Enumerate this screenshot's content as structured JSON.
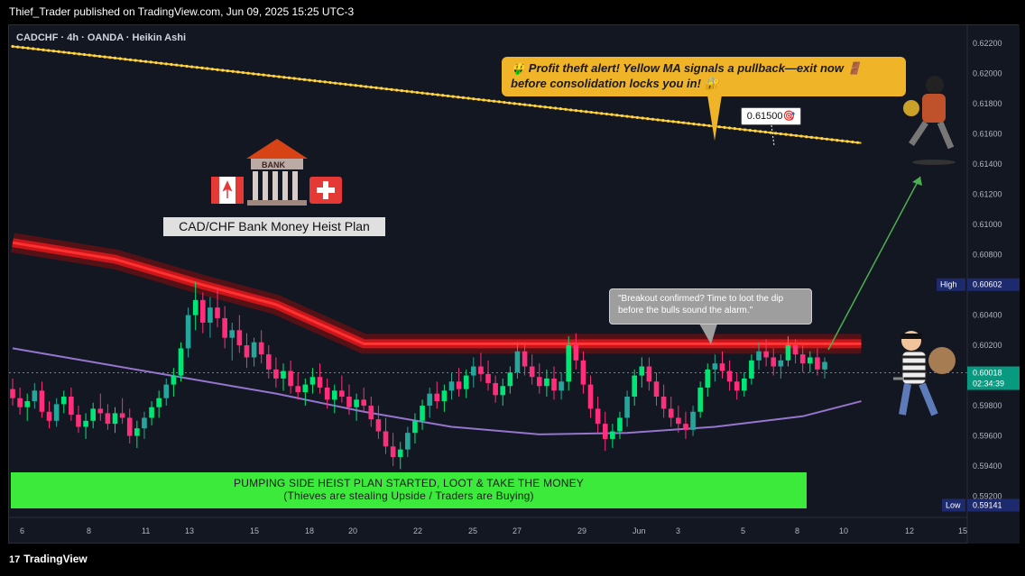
{
  "header": {
    "publisher_line": "Thief_Trader published on TradingView.com, Jun 09, 2025 15:25 UTC-3"
  },
  "footer": {
    "brand": "TradingView",
    "brand_mark": "17"
  },
  "symbol_line": "CADCHF · 4h · OANDA · Heikin Ashi",
  "annotations": {
    "yellow_callout_line1": "🤑 Profit theft alert! Yellow MA signals a pullback—exit now 🚪",
    "yellow_callout_line2": "before consolidation locks you in! 🔐",
    "target_label": "0.61500🎯",
    "bank_title": "CAD/CHF Bank Money Heist Plan",
    "bank_sign": "BANK",
    "quote_line1": "\"Breakout confirmed? Time to loot the dip",
    "quote_line2": "before the bulls sound the alarm.\"",
    "banner_line1": "PUMPING SIDE HEIST PLAN STARTED, LOOT & TAKE THE MONEY",
    "banner_line2": "(Thieves are stealing Upside / Traders are Buying)"
  },
  "chart_data": {
    "type": "candlestick",
    "style": "heikin-ashi",
    "symbol": "CADCHF",
    "timeframe": "4h",
    "broker": "OANDA",
    "y_axis": {
      "ylim": [
        0.5906,
        0.6232
      ],
      "ticks": [
        "0.62200",
        "0.62000",
        "0.61800",
        "0.61600",
        "0.61400",
        "0.61200",
        "0.61000",
        "0.60800",
        "0.60600",
        "0.60400",
        "0.60200",
        "0.59800",
        "0.59600",
        "0.59400",
        "0.59200"
      ]
    },
    "x_axis": {
      "ticks": [
        "6",
        "8",
        "11",
        "13",
        "15",
        "18",
        "20",
        "22",
        "25",
        "27",
        "29",
        "Jun",
        "3",
        "5",
        "8",
        "10",
        "12",
        "15"
      ]
    },
    "price_labels": [
      {
        "name": "High",
        "value": "0.60602",
        "color": "#1e2a6e"
      },
      {
        "name": "",
        "value": "0.60018",
        "sub": "02:34:39",
        "color": "#089981"
      },
      {
        "name": "Low",
        "value": "0.59141",
        "color": "#1e2a6e"
      }
    ],
    "last_price": 0.60018,
    "target_price": 0.615,
    "colors": {
      "up": "#26a69a",
      "up_bright": "#00e676",
      "down": "#ff2e7a",
      "ma_slow": "#9575cd",
      "ma_yellow": "#f5c518",
      "resistance": "#e01b1b"
    },
    "candles_ohlc": [
      [
        0.5991,
        0.5998,
        0.598,
        0.5985
      ],
      [
        0.5985,
        0.5992,
        0.5974,
        0.5979
      ],
      [
        0.5979,
        0.5988,
        0.597,
        0.5983
      ],
      [
        0.5983,
        0.5995,
        0.5978,
        0.599
      ],
      [
        0.599,
        0.5996,
        0.5972,
        0.5976
      ],
      [
        0.5976,
        0.5983,
        0.5965,
        0.597
      ],
      [
        0.597,
        0.5985,
        0.5966,
        0.5981
      ],
      [
        0.5981,
        0.599,
        0.5975,
        0.5986
      ],
      [
        0.5986,
        0.5992,
        0.597,
        0.5974
      ],
      [
        0.5974,
        0.598,
        0.5962,
        0.5966
      ],
      [
        0.5966,
        0.5975,
        0.5958,
        0.597
      ],
      [
        0.597,
        0.5982,
        0.5965,
        0.5978
      ],
      [
        0.5978,
        0.5988,
        0.597,
        0.5975
      ],
      [
        0.5975,
        0.5981,
        0.5964,
        0.5968
      ],
      [
        0.5968,
        0.5979,
        0.5962,
        0.5975
      ],
      [
        0.5975,
        0.5985,
        0.5968,
        0.5972
      ],
      [
        0.5972,
        0.5978,
        0.5955,
        0.596
      ],
      [
        0.596,
        0.597,
        0.5952,
        0.5965
      ],
      [
        0.5965,
        0.5976,
        0.5958,
        0.5972
      ],
      [
        0.5972,
        0.5983,
        0.5967,
        0.5979
      ],
      [
        0.5979,
        0.599,
        0.5972,
        0.5985
      ],
      [
        0.5985,
        0.5998,
        0.598,
        0.5994
      ],
      [
        0.5994,
        0.6005,
        0.5986,
        0.6
      ],
      [
        0.6,
        0.6022,
        0.5996,
        0.6018
      ],
      [
        0.6018,
        0.6045,
        0.6012,
        0.604
      ],
      [
        0.604,
        0.6062,
        0.603,
        0.605
      ],
      [
        0.605,
        0.6055,
        0.6028,
        0.6035
      ],
      [
        0.6035,
        0.6052,
        0.6025,
        0.6045
      ],
      [
        0.6045,
        0.6058,
        0.6032,
        0.6038
      ],
      [
        0.6038,
        0.6046,
        0.6018,
        0.6025
      ],
      [
        0.6025,
        0.6035,
        0.601,
        0.603
      ],
      [
        0.603,
        0.604,
        0.6015,
        0.602
      ],
      [
        0.602,
        0.6028,
        0.6005,
        0.6012
      ],
      [
        0.6012,
        0.6025,
        0.6006,
        0.6022
      ],
      [
        0.6022,
        0.603,
        0.6008,
        0.6014
      ],
      [
        0.6014,
        0.602,
        0.5998,
        0.6004
      ],
      [
        0.6004,
        0.6012,
        0.5992,
        0.5998
      ],
      [
        0.5998,
        0.6008,
        0.599,
        0.6003
      ],
      [
        0.6003,
        0.601,
        0.5988,
        0.5993
      ],
      [
        0.5993,
        0.6002,
        0.5984,
        0.5989
      ],
      [
        0.5989,
        0.5998,
        0.598,
        0.5994
      ],
      [
        0.5994,
        0.6005,
        0.5988,
        0.5999
      ],
      [
        0.5999,
        0.6008,
        0.5988,
        0.5992
      ],
      [
        0.5992,
        0.5998,
        0.5978,
        0.5984
      ],
      [
        0.5984,
        0.5994,
        0.5975,
        0.599
      ],
      [
        0.599,
        0.6,
        0.5982,
        0.5986
      ],
      [
        0.5986,
        0.5994,
        0.5974,
        0.5979
      ],
      [
        0.5979,
        0.5988,
        0.597,
        0.5984
      ],
      [
        0.5984,
        0.5992,
        0.5976,
        0.598
      ],
      [
        0.598,
        0.5986,
        0.5966,
        0.5971
      ],
      [
        0.5971,
        0.598,
        0.5958,
        0.5963
      ],
      [
        0.5963,
        0.5972,
        0.5948,
        0.5953
      ],
      [
        0.5953,
        0.5962,
        0.594,
        0.5946
      ],
      [
        0.5946,
        0.5956,
        0.5938,
        0.5951
      ],
      [
        0.5951,
        0.5966,
        0.5946,
        0.5962
      ],
      [
        0.5962,
        0.5975,
        0.5955,
        0.597
      ],
      [
        0.597,
        0.5984,
        0.5964,
        0.598
      ],
      [
        0.598,
        0.5992,
        0.5972,
        0.5988
      ],
      [
        0.5988,
        0.5996,
        0.5978,
        0.5983
      ],
      [
        0.5983,
        0.5994,
        0.5976,
        0.599
      ],
      [
        0.599,
        0.6002,
        0.5984,
        0.5996
      ],
      [
        0.5996,
        0.6005,
        0.5986,
        0.5991
      ],
      [
        0.5991,
        0.6004,
        0.5985,
        0.6
      ],
      [
        0.6,
        0.6012,
        0.5992,
        0.6006
      ],
      [
        0.6006,
        0.6015,
        0.5996,
        0.6001
      ],
      [
        0.6001,
        0.601,
        0.599,
        0.5995
      ],
      [
        0.5995,
        0.6,
        0.5982,
        0.5987
      ],
      [
        0.5987,
        0.5998,
        0.598,
        0.5993
      ],
      [
        0.5993,
        0.6006,
        0.5988,
        0.6002
      ],
      [
        0.6002,
        0.6022,
        0.5998,
        0.6016
      ],
      [
        0.6016,
        0.6022,
        0.6,
        0.6006
      ],
      [
        0.6006,
        0.6014,
        0.5994,
        0.5999
      ],
      [
        0.5999,
        0.6008,
        0.5988,
        0.5993
      ],
      [
        0.5993,
        0.6004,
        0.5986,
        0.5998
      ],
      [
        0.5998,
        0.6006,
        0.5984,
        0.599
      ],
      [
        0.599,
        0.6002,
        0.5984,
        0.5996
      ],
      [
        0.5996,
        0.6026,
        0.599,
        0.602
      ],
      [
        0.602,
        0.6028,
        0.6004,
        0.601
      ],
      [
        0.601,
        0.6016,
        0.5988,
        0.5994
      ],
      [
        0.5994,
        0.6,
        0.5972,
        0.5978
      ],
      [
        0.5978,
        0.5986,
        0.5962,
        0.5968
      ],
      [
        0.5968,
        0.5976,
        0.595,
        0.5958
      ],
      [
        0.5958,
        0.5968,
        0.5952,
        0.5963
      ],
      [
        0.5963,
        0.5976,
        0.5958,
        0.5972
      ],
      [
        0.5972,
        0.599,
        0.5966,
        0.5986
      ],
      [
        0.5986,
        0.6004,
        0.598,
        0.6
      ],
      [
        0.6,
        0.6012,
        0.5992,
        0.6006
      ],
      [
        0.6006,
        0.6012,
        0.599,
        0.5996
      ],
      [
        0.5996,
        0.6002,
        0.598,
        0.5986
      ],
      [
        0.5986,
        0.5994,
        0.5972,
        0.5978
      ],
      [
        0.5978,
        0.5986,
        0.5966,
        0.5972
      ],
      [
        0.5972,
        0.598,
        0.5962,
        0.5968
      ],
      [
        0.5968,
        0.5976,
        0.5958,
        0.5964
      ],
      [
        0.5964,
        0.598,
        0.596,
        0.5976
      ],
      [
        0.5976,
        0.5996,
        0.5972,
        0.5992
      ],
      [
        0.5992,
        0.6008,
        0.5986,
        0.6004
      ],
      [
        0.6004,
        0.6014,
        0.5996,
        0.6008
      ],
      [
        0.6008,
        0.6016,
        0.5998,
        0.6003
      ],
      [
        0.6003,
        0.601,
        0.599,
        0.5996
      ],
      [
        0.5996,
        0.6002,
        0.5984,
        0.599
      ],
      [
        0.599,
        0.6002,
        0.5986,
        0.5998
      ],
      [
        0.5998,
        0.6014,
        0.5994,
        0.601
      ],
      [
        0.601,
        0.6022,
        0.6004,
        0.6016
      ],
      [
        0.6016,
        0.6024,
        0.6006,
        0.6012
      ],
      [
        0.6012,
        0.6018,
        0.6,
        0.6006
      ],
      [
        0.6006,
        0.6014,
        0.5998,
        0.601
      ],
      [
        0.601,
        0.6026,
        0.6006,
        0.602
      ],
      [
        0.602,
        0.6024,
        0.6008,
        0.6014
      ],
      [
        0.6014,
        0.602,
        0.6002,
        0.6008
      ],
      [
        0.6008,
        0.6016,
        0.6002,
        0.6012
      ],
      [
        0.6012,
        0.6018,
        0.6,
        0.6004
      ],
      [
        0.6004,
        0.6012,
        0.5998,
        0.6009
      ]
    ],
    "slow_ma": [
      [
        0,
        0.6018
      ],
      [
        12,
        0.6008
      ],
      [
        24,
        0.5998
      ],
      [
        36,
        0.5988
      ],
      [
        48,
        0.5976
      ],
      [
        60,
        0.5966
      ],
      [
        72,
        0.5961
      ],
      [
        84,
        0.5962
      ],
      [
        96,
        0.5966
      ],
      [
        108,
        0.5973
      ],
      [
        116,
        0.5983
      ]
    ],
    "yellow_ma": [
      [
        0,
        0.6218
      ],
      [
        116,
        0.6154
      ]
    ],
    "resistance_band": {
      "upper": 0.6021,
      "lower": 0.6017,
      "start_index": 48,
      "end_index": 116
    },
    "descending_band": [
      [
        0,
        0.6088
      ],
      [
        14,
        0.6077
      ],
      [
        26,
        0.606
      ],
      [
        36,
        0.6047
      ],
      [
        48,
        0.6021
      ]
    ]
  }
}
